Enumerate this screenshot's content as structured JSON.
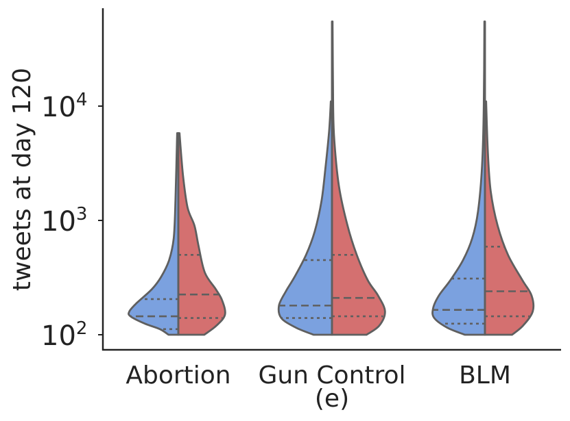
{
  "chart_data": {
    "type": "violin",
    "split": true,
    "scale": "log",
    "ylabel": "tweets at day 120",
    "xlabel": "(e)",
    "ylim": [
      85,
      75000
    ],
    "yticks": [
      {
        "value": 100,
        "base": "10",
        "exp": "2"
      },
      {
        "value": 1000,
        "base": "10",
        "exp": "3"
      },
      {
        "value": 10000,
        "base": "10",
        "exp": "4"
      }
    ],
    "categories": [
      "Abortion",
      "Gun Control",
      "BLM"
    ],
    "colors": {
      "left": "#7ba1df",
      "right": "#d47070"
    },
    "series": [
      {
        "name": "Abortion",
        "left": {
          "min": 100,
          "max": 5800,
          "quartiles": [
            112,
            145,
            205
          ],
          "profile": [
            [
              100,
              0.17
            ],
            [
              112,
              0.32
            ],
            [
              125,
              0.58
            ],
            [
              145,
              0.83
            ],
            [
              160,
              0.85
            ],
            [
              190,
              0.72
            ],
            [
              250,
              0.46
            ],
            [
              320,
              0.3
            ],
            [
              450,
              0.16
            ],
            [
              700,
              0.08
            ],
            [
              1500,
              0.05
            ],
            [
              5800,
              0.02
            ]
          ]
        },
        "right": {
          "min": 100,
          "max": 5800,
          "quartiles": [
            140,
            225,
            500
          ],
          "profile": [
            [
              100,
              0.45
            ],
            [
              120,
              0.66
            ],
            [
              150,
              0.81
            ],
            [
              200,
              0.76
            ],
            [
              250,
              0.65
            ],
            [
              350,
              0.46
            ],
            [
              600,
              0.35
            ],
            [
              900,
              0.28
            ],
            [
              1300,
              0.16
            ],
            [
              2500,
              0.08
            ],
            [
              5800,
              0.02
            ]
          ]
        }
      },
      {
        "name": "Gun Control",
        "left": {
          "min": 100,
          "max": 11000,
          "quartiles": [
            140,
            180,
            450
          ],
          "profile": [
            [
              100,
              0.32
            ],
            [
              115,
              0.62
            ],
            [
              140,
              0.88
            ],
            [
              180,
              0.92
            ],
            [
              240,
              0.8
            ],
            [
              320,
              0.65
            ],
            [
              500,
              0.45
            ],
            [
              800,
              0.3
            ],
            [
              1500,
              0.18
            ],
            [
              3000,
              0.11
            ],
            [
              6000,
              0.05
            ],
            [
              11000,
              0.02
            ]
          ]
        },
        "right": {
          "min": 100,
          "max": 55000,
          "quartiles": [
            145,
            210,
            500
          ],
          "profile": [
            [
              100,
              0.6
            ],
            [
              120,
              0.82
            ],
            [
              160,
              0.92
            ],
            [
              220,
              0.8
            ],
            [
              300,
              0.62
            ],
            [
              500,
              0.43
            ],
            [
              900,
              0.27
            ],
            [
              2000,
              0.12
            ],
            [
              5000,
              0.04
            ],
            [
              10000,
              0.02
            ],
            [
              55000,
              0.01
            ]
          ]
        }
      },
      {
        "name": "BLM",
        "left": {
          "min": 100,
          "max": 55000,
          "quartiles": [
            125,
            165,
            310
          ],
          "profile": [
            [
              100,
              0.35
            ],
            [
              115,
              0.65
            ],
            [
              140,
              0.88
            ],
            [
              170,
              0.9
            ],
            [
              220,
              0.8
            ],
            [
              300,
              0.6
            ],
            [
              450,
              0.38
            ],
            [
              700,
              0.22
            ],
            [
              1200,
              0.12
            ],
            [
              3000,
              0.05
            ],
            [
              10000,
              0.02
            ],
            [
              55000,
              0.01
            ]
          ]
        },
        "right": {
          "min": 100,
          "max": 11000,
          "quartiles": [
            145,
            240,
            590
          ],
          "profile": [
            [
              100,
              0.47
            ],
            [
              120,
              0.66
            ],
            [
              160,
              0.83
            ],
            [
              220,
              0.81
            ],
            [
              300,
              0.65
            ],
            [
              500,
              0.4
            ],
            [
              900,
              0.22
            ],
            [
              1800,
              0.1
            ],
            [
              4000,
              0.05
            ],
            [
              11000,
              0.02
            ]
          ]
        }
      }
    ]
  }
}
